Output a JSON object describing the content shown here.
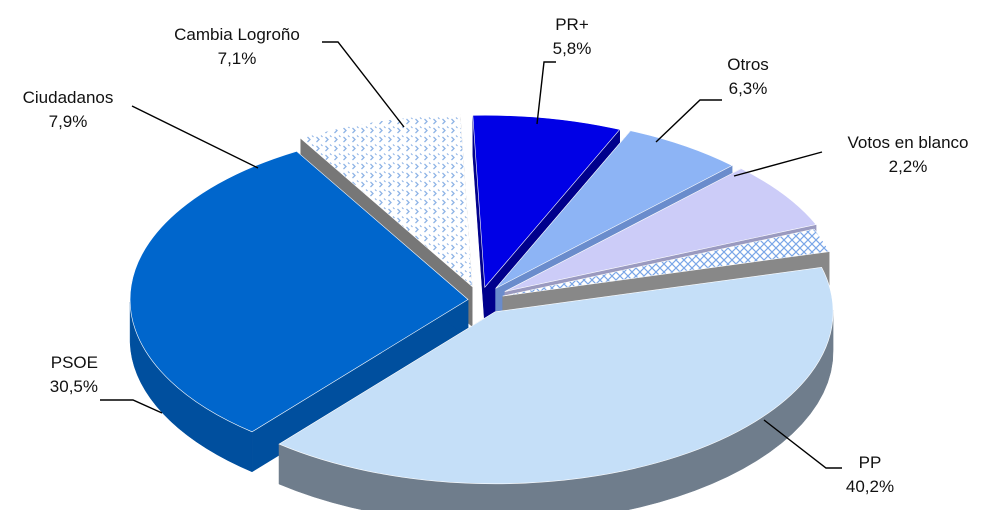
{
  "chart_data": {
    "type": "pie",
    "style": "3d-exploded",
    "title": "",
    "legend": "none",
    "slices": [
      {
        "label": "PP",
        "value": 40.2,
        "value_label": "40,2%",
        "color": "#c5dff8",
        "side_color": "#6f7d8c",
        "pattern": "none"
      },
      {
        "label": "PSOE",
        "value": 30.5,
        "value_label": "30,5%",
        "color": "#0066cc",
        "side_color": "#004f9e",
        "pattern": "none"
      },
      {
        "label": "Ciudadanos",
        "value": 7.9,
        "value_label": "7,9%",
        "color": "#ffffff",
        "side_color": "#777777",
        "pattern": "dotted-blue"
      },
      {
        "label": "Cambia Logroño",
        "value": 7.1,
        "value_label": "7,1%",
        "color": "#0000e6",
        "side_color": "#00008c",
        "pattern": "none"
      },
      {
        "label": "PR+",
        "value": 5.8,
        "value_label": "5,8%",
        "color": "#8db4f5",
        "side_color": "#6a8ccc",
        "pattern": "none"
      },
      {
        "label": "Otros",
        "value": 6.3,
        "value_label": "6,3%",
        "color": "#ccccf8",
        "side_color": "#9a9ac0",
        "pattern": "none"
      },
      {
        "label": "Votos en blanco",
        "value": 2.2,
        "value_label": "2,2%",
        "color": "#ffffff",
        "side_color": "#888888",
        "pattern": "crosshatch-blue"
      }
    ]
  }
}
